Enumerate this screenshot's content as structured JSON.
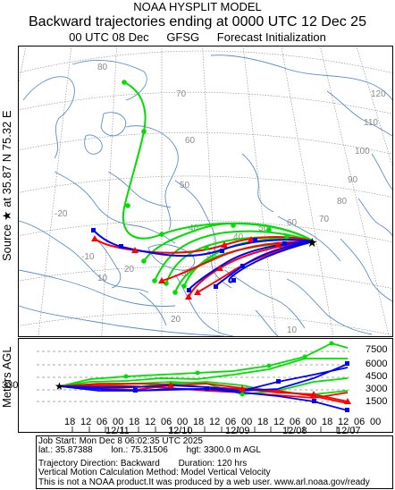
{
  "header": {
    "model": "NOAA HYSPLIT MODEL",
    "title": "Backward trajectories ending at 0000 UTC 12 Dec 25",
    "subtitle_left": "00 UTC 08 Dec",
    "subtitle_mid": "GFSG",
    "subtitle_right": "Forecast Initialization"
  },
  "source_label": {
    "prefix": "Source",
    "star": "★",
    "at": "at",
    "lat": "35.87 N",
    "lon": "75.32 E"
  },
  "map": {
    "latitude_labels": [
      "80",
      "70",
      "60",
      "50",
      "40",
      "30",
      "20",
      "10"
    ],
    "longitude_labels": [
      "-20",
      "-10",
      "10",
      "20",
      "30",
      "40",
      "50",
      "60",
      "70",
      "80",
      "90",
      "100",
      "110",
      "120"
    ],
    "colors": {
      "land": "#5b8fc4",
      "grid": "#8a8a8a",
      "red": "#ff0000",
      "blue": "#0000ff",
      "green": "#00dd00"
    }
  },
  "vertical": {
    "y_axis_label": "Meters AGL",
    "source_height": "3300",
    "height_labels": [
      "7500",
      "6000",
      "4500",
      "3000",
      "1500"
    ],
    "time_ticks": [
      "18",
      "12",
      "06",
      "00",
      "18",
      "12",
      "06",
      "00",
      "18",
      "12",
      "06",
      "00",
      "18",
      "12",
      "06",
      "00",
      "18",
      "12",
      "06",
      "00"
    ],
    "date_labels": [
      "12/11",
      "12/10",
      "12/09",
      "12/08",
      "12/07"
    ]
  },
  "info": {
    "job_start": "Job Start: Mon Dec  8 06:02:35 UTC 2025",
    "lat": "lat.: 35.87388",
    "lon": "lon.: 75.31506",
    "hgt": "hgt: 3300.0 m AGL",
    "direction": "Trajectory Direction: Backward",
    "duration": "Duration: 120 hrs",
    "vertical_motion": "Vertical Motion Calculation Method: Model Vertical Velocity",
    "disclaimer": "This is not a NOAA product.It was produced by a web user. www.arl.noaa.gov/ready"
  }
}
